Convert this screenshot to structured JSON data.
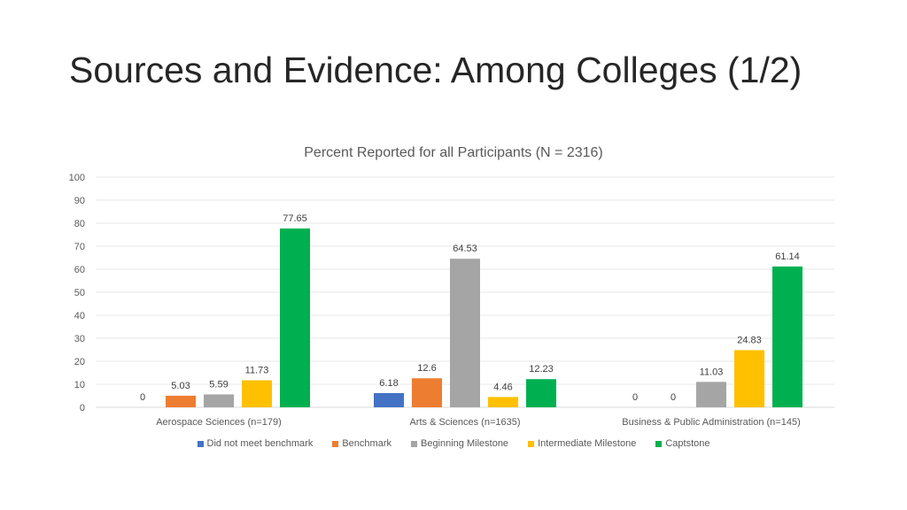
{
  "slide": {
    "title": "Sources and Evidence: Among Colleges (1/2)"
  },
  "chart_data": {
    "type": "bar",
    "title": "Percent Reported for all Participants (N = 2316)",
    "xlabel": "",
    "ylabel": "",
    "ylim": [
      0,
      100
    ],
    "yticks": [
      "0",
      "10",
      "20",
      "30",
      "40",
      "50",
      "60",
      "70",
      "80",
      "90",
      "100"
    ],
    "grid": true,
    "legend_position": "bottom",
    "categories": [
      "Aerospace Sciences (n=179)",
      "Arts & Sciences (n=1635)",
      "Business & Public Administration (n=145)"
    ],
    "series": [
      {
        "name": "Did not meet benchmark",
        "color": "#4472c4",
        "values": [
          0,
          6.18,
          0
        ],
        "labels": [
          "0",
          "6.18",
          "0"
        ]
      },
      {
        "name": "Benchmark",
        "color": "#ed7d31",
        "values": [
          5.03,
          12.6,
          0
        ],
        "labels": [
          "5.03",
          "12.6",
          "0"
        ]
      },
      {
        "name": "Beginning Milestone",
        "color": "#a5a5a5",
        "values": [
          5.59,
          64.53,
          11.03
        ],
        "labels": [
          "5.59",
          "64.53",
          "11.03"
        ]
      },
      {
        "name": "Intermediate Milestone",
        "color": "#ffc000",
        "values": [
          11.73,
          4.46,
          24.83
        ],
        "labels": [
          "11.73",
          "4.46",
          "24.83"
        ]
      },
      {
        "name": "Captstone",
        "color": "#00b050",
        "values": [
          77.65,
          12.23,
          61.14
        ],
        "labels": [
          "77.65",
          "12.23",
          "61.14"
        ]
      }
    ]
  }
}
